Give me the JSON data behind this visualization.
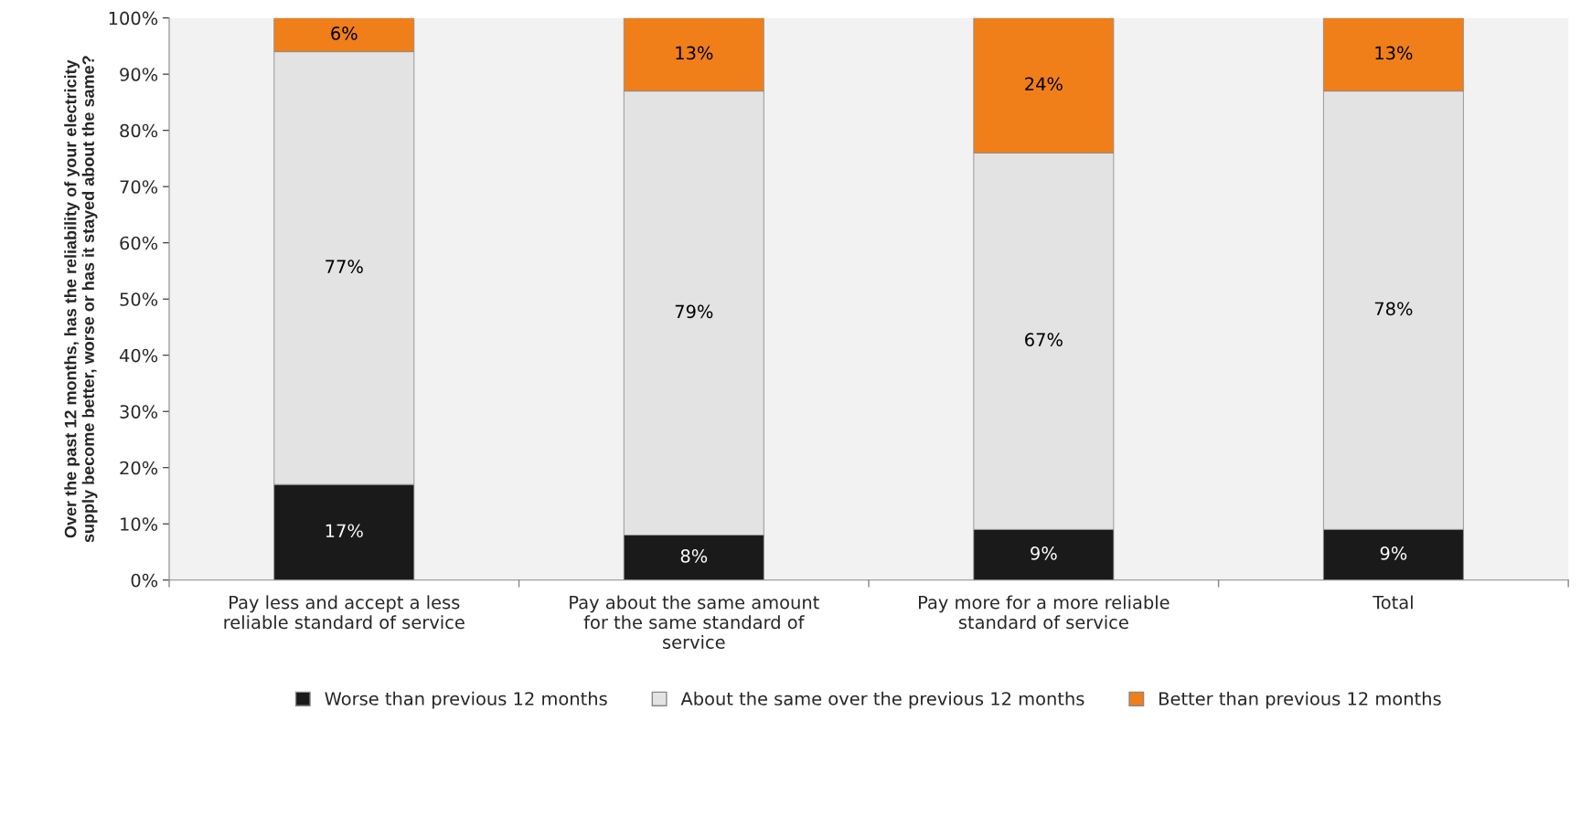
{
  "chart_data": {
    "type": "bar",
    "stacked": true,
    "ylabel": "Over the past 12 months, has the reliability of your electricity\nsupply become better, worse or has it stayed about the same?",
    "categories": [
      "Pay less and accept a less\nreliable standard of service",
      "Pay about the same amount\nfor the same standard of\nservice",
      "Pay more for a more reliable\nstandard of service",
      "Total"
    ],
    "series": [
      {
        "name": "Worse than previous 12 months",
        "color": "#1a1a1a",
        "values": [
          17,
          8,
          9,
          9
        ],
        "value_labels": [
          "17%",
          "8%",
          "9%",
          "9%"
        ]
      },
      {
        "name": "About the same over the previous 12 months",
        "color": "#e3e3e3",
        "values": [
          77,
          79,
          67,
          78
        ],
        "value_labels": [
          "77%",
          "79%",
          "67%",
          "78%"
        ]
      },
      {
        "name": "Better than previous 12 months",
        "color": "#f07f1a",
        "values": [
          6,
          13,
          24,
          13
        ],
        "value_labels": [
          "6%",
          "13%",
          "24%",
          "13%"
        ]
      }
    ],
    "ylim": [
      0,
      100
    ],
    "yticks": [
      {
        "value": 0,
        "label": "0%"
      },
      {
        "value": 10,
        "label": "10%"
      },
      {
        "value": 20,
        "label": "20%"
      },
      {
        "value": 30,
        "label": "30%"
      },
      {
        "value": 40,
        "label": "40%"
      },
      {
        "value": 50,
        "label": "50%"
      },
      {
        "value": 60,
        "label": "60%"
      },
      {
        "value": 70,
        "label": "70%"
      },
      {
        "value": 80,
        "label": "80%"
      },
      {
        "value": 90,
        "label": "90%"
      },
      {
        "value": 100,
        "label": "100%"
      }
    ],
    "grid": false,
    "legend": "bottom"
  }
}
